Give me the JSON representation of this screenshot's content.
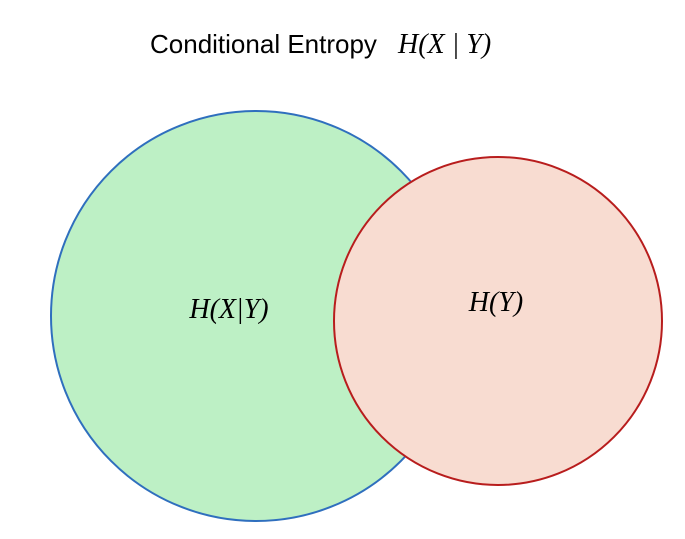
{
  "title": {
    "text": "Conditional Entropy",
    "math": "H(X | Y)"
  },
  "diagram": {
    "left_circle": {
      "label": "H(X|Y)",
      "fill": "#bdf0c5",
      "stroke": "#2f6fbe"
    },
    "right_circle": {
      "label": "H(Y)",
      "fill": "#f8dcd1",
      "stroke": "#b81d1d"
    }
  }
}
